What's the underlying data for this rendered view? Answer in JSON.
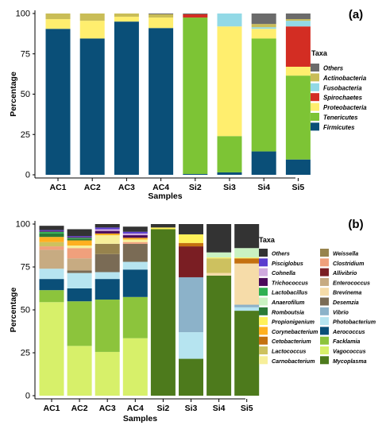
{
  "chart_data": [
    {
      "type": "bar",
      "stacked": true,
      "panel_label": "(a)",
      "xlabel": "Samples",
      "ylabel": "Percentage",
      "ylim": [
        0,
        100
      ],
      "yticks": [
        0,
        25,
        50,
        75,
        100
      ],
      "legend_title": "Taxa",
      "legend_position": "right",
      "categories": [
        "AC1",
        "AC2",
        "AC3",
        "AC4",
        "Si2",
        "Si3",
        "Si4",
        "Si5"
      ],
      "series": [
        {
          "name": "Firmicutes",
          "color": "#0a4f78",
          "values": [
            90.5,
            84.5,
            95,
            91,
            0.5,
            1.5,
            14.5,
            9.5
          ]
        },
        {
          "name": "Tenericutes",
          "color": "#7dc435",
          "values": [
            0,
            0,
            0,
            0,
            97,
            22.5,
            70,
            52
          ]
        },
        {
          "name": "Proteobacteria",
          "color": "#ffee6e",
          "values": [
            6,
            11,
            3,
            6.5,
            0,
            68,
            6,
            5.5
          ]
        },
        {
          "name": "Spirochaetes",
          "color": "#d32d23",
          "values": [
            0,
            0,
            0,
            0,
            2,
            0,
            0,
            25
          ]
        },
        {
          "name": "Fusobacteria",
          "color": "#92d9e6",
          "values": [
            0,
            0,
            0,
            0,
            0,
            8,
            1,
            3.5
          ]
        },
        {
          "name": "Actinobacteria",
          "color": "#c9bd57",
          "values": [
            3.5,
            4.5,
            2,
            2,
            0,
            0,
            2,
            1
          ]
        },
        {
          "name": "Others",
          "color": "#6b6b6b",
          "values": [
            0,
            0,
            0,
            0.5,
            0.5,
            0,
            6.5,
            3.5
          ]
        }
      ]
    },
    {
      "type": "bar",
      "stacked": true,
      "panel_label": "(b)",
      "xlabel": "Samples",
      "ylabel": "Percentage",
      "ylim": [
        0,
        100
      ],
      "yticks": [
        0,
        25,
        50,
        75,
        100
      ],
      "legend_title": "Taxa",
      "legend_position": "right",
      "categories": [
        "AC1",
        "AC2",
        "AC3",
        "AC4",
        "Si2",
        "Si3",
        "Si4",
        "Si5"
      ],
      "series": [
        {
          "name": "Mycoplasma",
          "color": "#4d7a1c",
          "values": [
            0,
            0,
            0,
            0,
            97,
            21.5,
            70,
            49.5
          ]
        },
        {
          "name": "Vagococcus",
          "color": "#d7f06a",
          "values": [
            54.5,
            29,
            25.5,
            33.5,
            0,
            0,
            0,
            0
          ]
        },
        {
          "name": "Facklamia",
          "color": "#8cc43c",
          "values": [
            7,
            26,
            30.5,
            24,
            0,
            0,
            0,
            0
          ]
        },
        {
          "name": "Aerococcus",
          "color": "#0a4f78",
          "values": [
            6.5,
            7.5,
            12,
            16,
            0,
            0,
            0,
            0
          ]
        },
        {
          "name": "Photobacterium",
          "color": "#b6e4f0",
          "values": [
            6,
            9,
            4,
            4.5,
            0,
            15.5,
            0,
            2
          ]
        },
        {
          "name": "Vibrio",
          "color": "#8cb2c9",
          "values": [
            0,
            0,
            0,
            0,
            0,
            32,
            0,
            1.5
          ]
        },
        {
          "name": "Desemzia",
          "color": "#7a6b55",
          "values": [
            0,
            1.5,
            10.5,
            10.5,
            0,
            0,
            0,
            0
          ]
        },
        {
          "name": "Brevinema",
          "color": "#f6dca9",
          "values": [
            0,
            0,
            0,
            0,
            0,
            0,
            1.5,
            24
          ]
        },
        {
          "name": "Enterococcus",
          "color": "#c7ab82",
          "values": [
            11,
            7,
            0,
            0,
            0,
            0,
            0,
            0
          ]
        },
        {
          "name": "Allivibrio",
          "color": "#7a1e23",
          "values": [
            0,
            0,
            0,
            0,
            0,
            18,
            0,
            0
          ]
        },
        {
          "name": "Clostridium",
          "color": "#f0a07c",
          "values": [
            2,
            6,
            0,
            1,
            0,
            0,
            0,
            0
          ]
        },
        {
          "name": "Weissella",
          "color": "#97834d",
          "values": [
            0,
            0,
            6,
            0,
            0,
            0,
            0,
            0
          ]
        },
        {
          "name": "Carnobacterium",
          "color": "#f7ef9a",
          "values": [
            0,
            1.5,
            5,
            1.5,
            0,
            0,
            0,
            0
          ]
        },
        {
          "name": "Lactococcus",
          "color": "#cdc15f",
          "values": [
            2.5,
            0,
            0,
            0,
            0,
            0,
            8.5,
            0
          ]
        },
        {
          "name": "Cetobacterium",
          "color": "#c4700f",
          "values": [
            0,
            0,
            0,
            0,
            0,
            2,
            0,
            3
          ]
        },
        {
          "name": "Corynebacterium",
          "color": "#ffb020",
          "values": [
            3,
            3,
            1,
            1,
            0,
            0,
            0,
            0
          ]
        },
        {
          "name": "Propionigenium",
          "color": "#fff15a",
          "values": [
            0,
            0,
            0,
            0,
            1,
            5,
            0.5,
            0.5
          ]
        },
        {
          "name": "Romboutsia",
          "color": "#2a7a36",
          "values": [
            2,
            1,
            0,
            0,
            0,
            0,
            0,
            0
          ]
        },
        {
          "name": "Anaerofilum",
          "color": "#c9f2c2",
          "values": [
            0,
            0,
            0,
            0,
            0,
            0,
            3,
            5.5
          ]
        },
        {
          "name": "Lactobacillus",
          "color": "#2fb052",
          "values": [
            1,
            0.5,
            0,
            0,
            0,
            0,
            0,
            0
          ]
        },
        {
          "name": "Trichococcus",
          "color": "#4a0a5a",
          "values": [
            0.5,
            0.5,
            1.5,
            1.5,
            0,
            0,
            0,
            0
          ]
        },
        {
          "name": "Cohnella",
          "color": "#cfa9de",
          "values": [
            0,
            0,
            1,
            1,
            0,
            0,
            0,
            0
          ]
        },
        {
          "name": "Pisciglobus",
          "color": "#5a3ccf",
          "values": [
            0.5,
            0.5,
            1,
            1,
            0,
            0,
            0,
            0
          ]
        },
        {
          "name": "Others",
          "color": "#333333",
          "values": [
            2.5,
            4,
            2,
            3,
            2,
            6,
            16.5,
            14
          ]
        }
      ]
    }
  ]
}
